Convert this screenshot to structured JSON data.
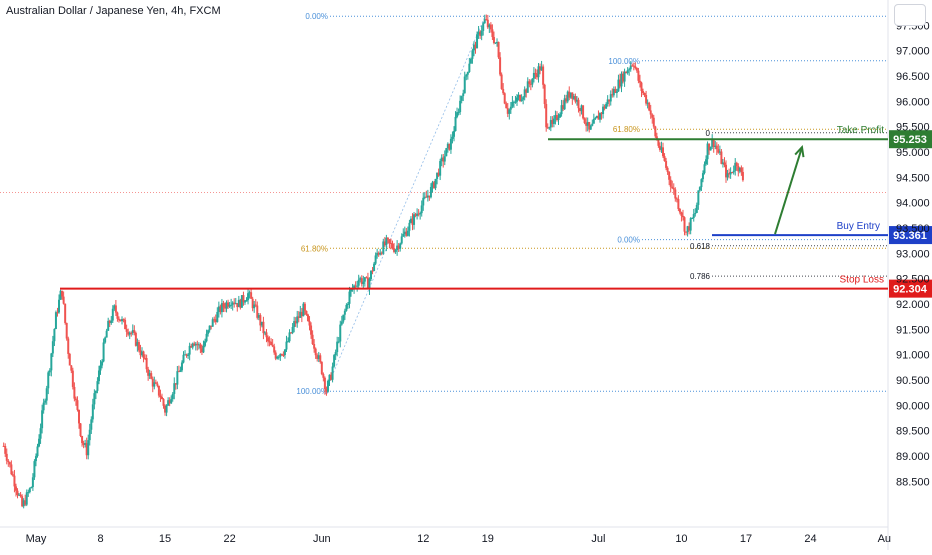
{
  "title": "Australian Dollar / Japanese Yen, 4h, FXCM",
  "colors": {
    "up": "#26a69a",
    "down": "#ef5350",
    "take_profit": "#2e7d32",
    "buy_entry": "#1e40c8",
    "stop_loss": "#e01b1b",
    "fib": "#4a90d9",
    "fib_gold": "#c8951c",
    "axis_text": "#131722"
  },
  "chart_data": {
    "type": "candlestick",
    "title": "Australian Dollar / Japanese Yen, 4h, FXCM",
    "ylim": [
      87.6,
      98.0
    ],
    "y_ticks": [
      "97.500",
      "97.000",
      "96.500",
      "96.000",
      "95.500",
      "95.000",
      "94.500",
      "94.000",
      "93.500",
      "93.000",
      "92.500",
      "92.000",
      "91.500",
      "91.000",
      "90.500",
      "90.000",
      "89.500",
      "89.000",
      "88.500"
    ],
    "y_tick_values": [
      97.5,
      97.0,
      96.5,
      96.0,
      95.5,
      95.0,
      94.5,
      94.0,
      93.5,
      93.0,
      92.5,
      92.0,
      91.5,
      91.0,
      90.5,
      90.0,
      89.5,
      89.0,
      88.5
    ],
    "x_ticks": [
      {
        "label": "May",
        "day": 0
      },
      {
        "label": "8",
        "day": 7
      },
      {
        "label": "15",
        "day": 14
      },
      {
        "label": "22",
        "day": 21
      },
      {
        "label": "Jun",
        "day": 31
      },
      {
        "label": "12",
        "day": 42
      },
      {
        "label": "19",
        "day": 49
      },
      {
        "label": "Jul",
        "day": 61
      },
      {
        "label": "10",
        "day": 70
      },
      {
        "label": "17",
        "day": 77
      },
      {
        "label": "24",
        "day": 84
      },
      {
        "label": "Au",
        "day": 92
      }
    ],
    "x_day_range": [
      -3.9,
      92.4
    ],
    "price_path": [
      [
        -3.5,
        89.2
      ],
      [
        -2.5,
        88.6
      ],
      [
        -1.5,
        88.0
      ],
      [
        -0.5,
        88.4
      ],
      [
        0.5,
        89.6
      ],
      [
        1.5,
        90.8
      ],
      [
        2.2,
        91.8
      ],
      [
        2.8,
        92.3
      ],
      [
        3.4,
        91.2
      ],
      [
        4.2,
        90.2
      ],
      [
        5.0,
        89.3
      ],
      [
        5.5,
        89.1
      ],
      [
        6.2,
        90.0
      ],
      [
        7.0,
        90.8
      ],
      [
        7.7,
        91.5
      ],
      [
        8.5,
        91.9
      ],
      [
        9.5,
        91.6
      ],
      [
        10.5,
        91.4
      ],
      [
        11.5,
        91.0
      ],
      [
        12.5,
        90.5
      ],
      [
        13.5,
        90.2
      ],
      [
        14.0,
        89.9
      ],
      [
        15.0,
        90.4
      ],
      [
        16.0,
        90.9
      ],
      [
        17.0,
        91.3
      ],
      [
        18.0,
        91.1
      ],
      [
        19.0,
        91.6
      ],
      [
        20.0,
        91.9
      ],
      [
        21.2,
        92.1
      ],
      [
        22.0,
        92.0
      ],
      [
        23.0,
        92.2
      ],
      [
        24.0,
        91.8
      ],
      [
        25.0,
        91.3
      ],
      [
        26.0,
        91.0
      ],
      [
        27.0,
        91.1
      ],
      [
        28.0,
        91.6
      ],
      [
        29.0,
        91.9
      ],
      [
        30.0,
        91.3
      ],
      [
        31.0,
        90.7
      ],
      [
        31.5,
        90.3
      ],
      [
        32.0,
        90.6
      ],
      [
        33.0,
        91.5
      ],
      [
        34.0,
        92.2
      ],
      [
        35.0,
        92.5
      ],
      [
        36.0,
        92.4
      ],
      [
        37.0,
        93.0
      ],
      [
        38.0,
        93.2
      ],
      [
        39.0,
        93.1
      ],
      [
        40.0,
        93.4
      ],
      [
        41.0,
        93.7
      ],
      [
        42.0,
        94.0
      ],
      [
        43.0,
        94.3
      ],
      [
        44.0,
        94.8
      ],
      [
        45.0,
        95.2
      ],
      [
        46.0,
        96.0
      ],
      [
        47.0,
        96.8
      ],
      [
        48.0,
        97.3
      ],
      [
        48.7,
        97.6
      ],
      [
        49.5,
        97.3
      ],
      [
        50.0,
        97.1
      ],
      [
        50.6,
        96.2
      ],
      [
        51.2,
        95.8
      ],
      [
        52.0,
        96.0
      ],
      [
        53.0,
        96.2
      ],
      [
        54.0,
        96.5
      ],
      [
        54.8,
        96.7
      ],
      [
        55.3,
        95.6
      ],
      [
        56.0,
        95.5
      ],
      [
        57.0,
        95.9
      ],
      [
        58.0,
        96.2
      ],
      [
        59.0,
        95.9
      ],
      [
        60.0,
        95.4
      ],
      [
        61.0,
        95.7
      ],
      [
        62.0,
        96.0
      ],
      [
        63.0,
        96.3
      ],
      [
        64.0,
        96.6
      ],
      [
        64.8,
        96.8
      ],
      [
        65.5,
        96.3
      ],
      [
        66.5,
        95.9
      ],
      [
        67.2,
        95.3
      ],
      [
        68.0,
        94.9
      ],
      [
        69.0,
        94.3
      ],
      [
        70.0,
        93.8
      ],
      [
        70.5,
        93.4
      ],
      [
        71.5,
        93.8
      ],
      [
        72.0,
        94.3
      ],
      [
        72.8,
        95.1
      ],
      [
        73.5,
        95.2
      ],
      [
        74.2,
        94.9
      ],
      [
        75.0,
        94.5
      ],
      [
        76.0,
        94.8
      ],
      [
        76.8,
        94.4
      ]
    ],
    "levels": [
      {
        "name": "Take Profit",
        "value": 95.253,
        "label": "95.253"
      },
      {
        "name": "Buy Entry",
        "value": 93.361,
        "label": "93.361"
      },
      {
        "name": "Stop Loss",
        "value": 92.304,
        "label": "92.304"
      }
    ],
    "current_price": 94.2,
    "fib_left": [
      {
        "label": "0.00%",
        "value": 97.68
      },
      {
        "label": "61.80%",
        "value": 93.1
      },
      {
        "label": "100.00%",
        "value": 90.28
      }
    ],
    "fib_right": [
      {
        "label": "100.00%",
        "value": 96.8
      },
      {
        "label": "61.80%",
        "value": 95.45
      },
      {
        "label": "0.00%",
        "value": 93.27
      }
    ],
    "fib_mid": [
      {
        "label": "0",
        "value": 95.38
      },
      {
        "label": "0.618",
        "value": 93.15
      },
      {
        "label": "0.786",
        "value": 92.55
      }
    ]
  },
  "annotations": {
    "take_profit": "Take Profit",
    "buy_entry": "Buy Entry",
    "stop_loss": "Stop Loss"
  }
}
